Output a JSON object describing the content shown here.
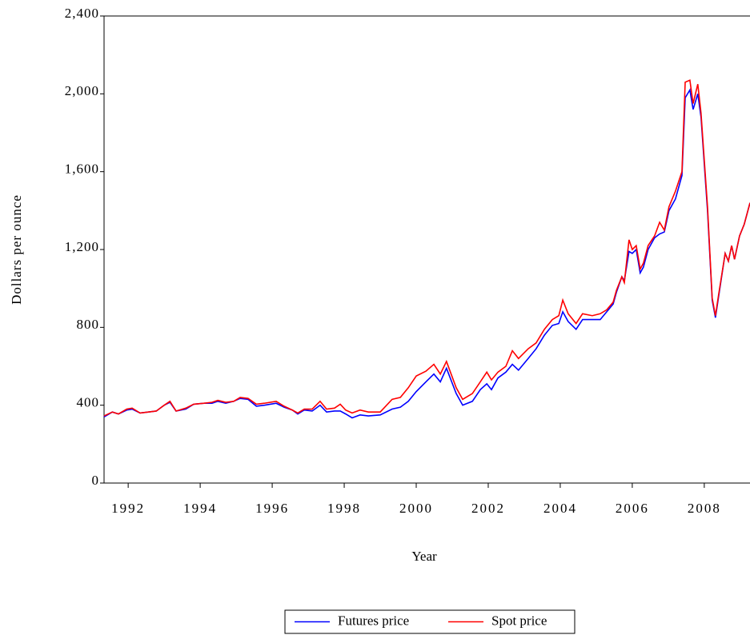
{
  "chart_data": {
    "type": "line",
    "x_label": "Year",
    "y_label": "Dollars per ounce",
    "legend": "bottom",
    "xlim": [
      1991.33,
      2009.27
    ],
    "ylim": [
      0,
      2400
    ],
    "xticks": [
      1992,
      1994,
      1996,
      1998,
      2000,
      2002,
      2004,
      2006,
      2008
    ],
    "yticks": [
      0,
      {
        "value": 400,
        "label": "400"
      },
      {
        "value": 800,
        "label": "800"
      },
      {
        "value": 1200,
        "label": "1,200"
      },
      {
        "value": 1600,
        "label": "1,600"
      },
      {
        "value": 2000,
        "label": "2,000"
      },
      {
        "value": 2400,
        "label": "2,400"
      }
    ],
    "x": [
      1991.33,
      1991.56,
      1991.73,
      1991.96,
      1992.11,
      1992.33,
      1992.56,
      1992.78,
      1993.0,
      1993.16,
      1993.33,
      1993.6,
      1993.82,
      1994.11,
      1994.33,
      1994.49,
      1994.71,
      1994.93,
      1995.11,
      1995.33,
      1995.56,
      1995.78,
      1996.11,
      1996.33,
      1996.56,
      1996.71,
      1996.89,
      1997.11,
      1997.33,
      1997.51,
      1997.73,
      1997.89,
      1998.04,
      1998.22,
      1998.44,
      1998.67,
      1999.0,
      1999.33,
      1999.56,
      1999.78,
      2000.0,
      2000.27,
      2000.49,
      2000.67,
      2000.84,
      2001.11,
      2001.29,
      2001.56,
      2001.78,
      2001.96,
      2002.09,
      2002.27,
      2002.49,
      2002.67,
      2002.84,
      2003.11,
      2003.33,
      2003.56,
      2003.78,
      2003.96,
      2004.07,
      2004.22,
      2004.44,
      2004.62,
      2004.89,
      2005.11,
      2005.29,
      2005.47,
      2005.56,
      2005.71,
      2005.78,
      2005.91,
      2006.0,
      2006.11,
      2006.22,
      2006.31,
      2006.44,
      2006.62,
      2006.76,
      2006.89,
      2007.02,
      2007.2,
      2007.38,
      2007.47,
      2007.6,
      2007.69,
      2007.82,
      2007.91,
      2008.09,
      2008.22,
      2008.31,
      2008.4,
      2008.58,
      2008.67,
      2008.76,
      2008.84,
      2008.98,
      2009.11,
      2009.27
    ],
    "series": [
      {
        "name": "Futures price",
        "color": "#0000ff",
        "values": [
          340,
          365,
          355,
          375,
          380,
          360,
          365,
          370,
          400,
          415,
          370,
          380,
          405,
          410,
          410,
          420,
          410,
          420,
          435,
          430,
          395,
          400,
          410,
          390,
          375,
          355,
          375,
          370,
          400,
          365,
          370,
          370,
          355,
          335,
          350,
          345,
          350,
          380,
          390,
          420,
          470,
          520,
          560,
          520,
          590,
          460,
          400,
          420,
          480,
          510,
          480,
          540,
          570,
          610,
          580,
          640,
          690,
          760,
          810,
          820,
          880,
          830,
          790,
          840,
          840,
          840,
          880,
          920,
          980,
          1060,
          1040,
          1190,
          1180,
          1200,
          1080,
          1110,
          1200,
          1260,
          1280,
          1290,
          1400,
          1460,
          1580,
          1980,
          2020,
          1920,
          2000,
          1880,
          1400,
          940,
          850,
          960,
          1180,
          1140,
          1220,
          1150,
          1270,
          1330,
          1440
        ]
      },
      {
        "name": "Spot price",
        "color": "#ff0000",
        "values": [
          345,
          365,
          355,
          380,
          385,
          360,
          365,
          370,
          400,
          420,
          370,
          385,
          405,
          410,
          415,
          425,
          415,
          420,
          440,
          435,
          405,
          410,
          420,
          395,
          375,
          360,
          380,
          380,
          420,
          380,
          385,
          405,
          375,
          360,
          375,
          365,
          365,
          430,
          440,
          490,
          550,
          575,
          610,
          560,
          625,
          490,
          430,
          460,
          520,
          570,
          530,
          570,
          600,
          680,
          640,
          690,
          720,
          790,
          840,
          860,
          940,
          870,
          820,
          870,
          860,
          870,
          890,
          930,
          990,
          1060,
          1030,
          1250,
          1200,
          1220,
          1100,
          1130,
          1220,
          1270,
          1340,
          1300,
          1420,
          1500,
          1600,
          2060,
          2070,
          1950,
          2050,
          1900,
          1420,
          950,
          860,
          970,
          1180,
          1140,
          1220,
          1150,
          1270,
          1330,
          1440
        ]
      }
    ]
  }
}
